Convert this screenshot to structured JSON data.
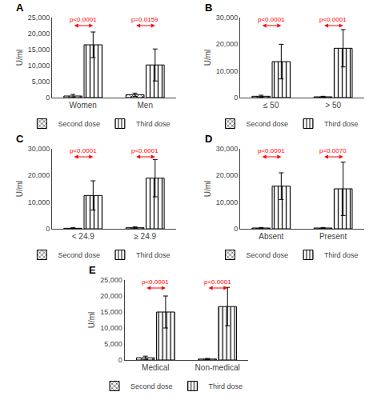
{
  "chart_data": [
    {
      "type": "bar",
      "title": "A",
      "ylabel": "U/ml",
      "categories": [
        "Women",
        "Men"
      ],
      "series": [
        {
          "name": "Second dose",
          "color": "white",
          "marker": "x",
          "values": [
            500,
            900
          ],
          "errors": [
            500,
            500
          ]
        },
        {
          "name": "Third dose",
          "color": "white",
          "marker": "|",
          "values": [
            16500,
            10200
          ],
          "errors": [
            4000,
            5000
          ]
        }
      ],
      "ylim": [
        0,
        25000
      ],
      "yticks": [
        0,
        {
          "value": 5000,
          "label": "5,000"
        },
        {
          "value": 10000,
          "label": "10,000"
        },
        {
          "value": 15000,
          "label": "15,000"
        },
        {
          "value": 20000,
          "label": "20,000"
        },
        {
          "value": 25000,
          "label": "25,000"
        }
      ],
      "annotations": [
        {
          "text": "p<0.0001",
          "category": "Women",
          "color": "#ff0000"
        },
        {
          "text": "p=0.0159",
          "category": "Men",
          "color": "#ff0000"
        }
      ],
      "grid": false,
      "legend": "bottom"
    },
    {
      "type": "bar",
      "title": "B",
      "ylabel": "U/ml",
      "categories": [
        "≤ 50",
        "> 50"
      ],
      "series": [
        {
          "name": "Second dose",
          "color": "white",
          "marker": "x",
          "values": [
            500,
            300
          ],
          "errors": [
            400,
            200
          ]
        },
        {
          "name": "Third dose",
          "color": "white",
          "marker": "|",
          "values": [
            13500,
            18500
          ],
          "errors": [
            6500,
            7000
          ]
        }
      ],
      "ylim": [
        0,
        30000
      ],
      "yticks": [
        0,
        {
          "value": 10000,
          "label": "10,000"
        },
        {
          "value": 20000,
          "label": "20,000"
        },
        {
          "value": 30000,
          "label": "30,000"
        }
      ],
      "annotations": [
        {
          "text": "p<0.0001",
          "category": "≤ 50",
          "color": "#ff0000"
        },
        {
          "text": "p<0.0001",
          "category": "> 50",
          "color": "#ff0000"
        }
      ],
      "grid": false,
      "legend": "bottom"
    },
    {
      "type": "bar",
      "title": "C",
      "ylabel": "U/ml",
      "categories": [
        "< 24.9",
        "≥ 24.9"
      ],
      "series": [
        {
          "name": "Second dose",
          "color": "white",
          "marker": "x",
          "values": [
            200,
            400
          ],
          "errors": [
            200,
            300
          ]
        },
        {
          "name": "Third dose",
          "color": "white",
          "marker": "|",
          "values": [
            12500,
            19000
          ],
          "errors": [
            5500,
            7000
          ]
        }
      ],
      "ylim": [
        0,
        30000
      ],
      "yticks": [
        0,
        {
          "value": 10000,
          "label": "10,000"
        },
        {
          "value": 20000,
          "label": "20,000"
        },
        {
          "value": 30000,
          "label": "30,000"
        }
      ],
      "annotations": [
        {
          "text": "p<0.0001",
          "category": "< 24.9",
          "color": "#ff0000"
        },
        {
          "text": "p<0.0001",
          "category": "≥ 24.9",
          "color": "#ff0000"
        }
      ],
      "grid": false,
      "legend": "bottom"
    },
    {
      "type": "bar",
      "title": "D",
      "ylabel": "U/ml",
      "categories": [
        "Absent",
        "Present"
      ],
      "series": [
        {
          "name": "Second dose",
          "color": "white",
          "marker": "x",
          "values": [
            300,
            300
          ],
          "errors": [
            200,
            200
          ]
        },
        {
          "name": "Third dose",
          "color": "white",
          "marker": "|",
          "values": [
            16000,
            15000
          ],
          "errors": [
            5000,
            10000
          ]
        }
      ],
      "ylim": [
        0,
        30000
      ],
      "yticks": [
        0,
        {
          "value": 10000,
          "label": "10,000"
        },
        {
          "value": 20000,
          "label": "20,000"
        },
        {
          "value": 30000,
          "label": "30,000"
        }
      ],
      "annotations": [
        {
          "text": "p<0.0001",
          "category": "Absent",
          "color": "#ff0000"
        },
        {
          "text": "p=0.0070",
          "category": "Present",
          "color": "#ff0000"
        }
      ],
      "grid": false,
      "legend": "bottom"
    },
    {
      "type": "bar",
      "title": "E",
      "ylabel": "U/ml",
      "categories": [
        "Medical",
        "Non-medical"
      ],
      "series": [
        {
          "name": "Second dose",
          "color": "white",
          "marker": "x",
          "values": [
            700,
            300
          ],
          "errors": [
            500,
            200
          ]
        },
        {
          "name": "Third dose",
          "color": "white",
          "marker": "|",
          "values": [
            15000,
            16700
          ],
          "errors": [
            5000,
            6000
          ]
        }
      ],
      "ylim": [
        0,
        25000
      ],
      "yticks": [
        0,
        {
          "value": 5000,
          "label": "5,000"
        },
        {
          "value": 10000,
          "label": "10,000"
        },
        {
          "value": 15000,
          "label": "15,000"
        },
        {
          "value": 20000,
          "label": "20,000"
        },
        {
          "value": 25000,
          "label": "25,000"
        }
      ],
      "annotations": [
        {
          "text": "p<0.0001",
          "category": "Medical",
          "color": "#ff0000"
        },
        {
          "text": "p<0.0001",
          "category": "Non-medical",
          "color": "#ff0000"
        }
      ],
      "grid": false,
      "legend": "bottom"
    }
  ]
}
